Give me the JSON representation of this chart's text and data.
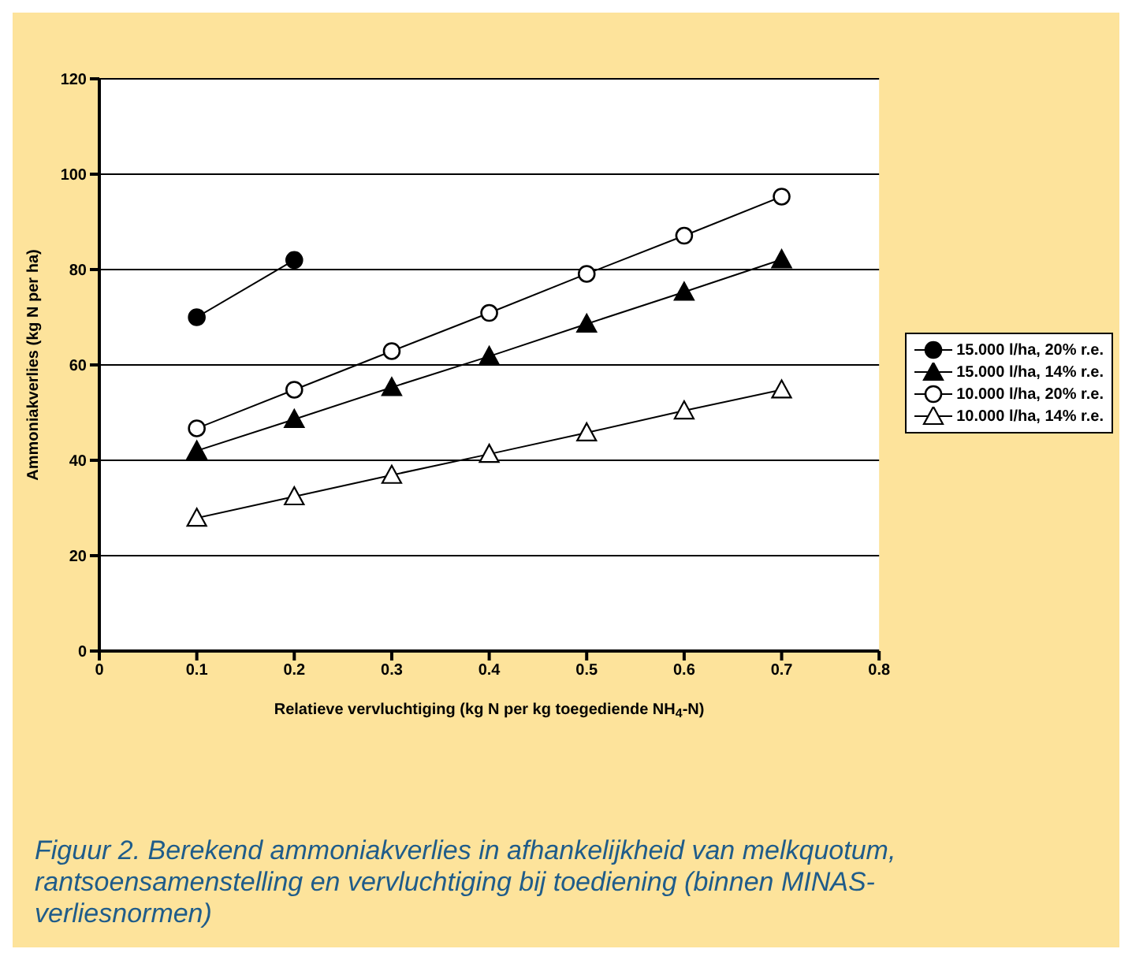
{
  "chart_data": {
    "type": "line",
    "xlabel": "Relatieve vervluchtiging (kg N per kg toegediende NH$_{4}$-N)",
    "ylabel": "Ammoniakverlies (kg N per ha)",
    "x": [
      0.1,
      0.2,
      0.3,
      0.4,
      0.5,
      0.6,
      0.7
    ],
    "series": [
      {
        "name": "15.000 l/ha, 20% r.e.",
        "color": "#000000",
        "marker": "circle",
        "values": [
          70,
          82,
          null,
          null,
          null,
          null,
          null
        ]
      },
      {
        "name": "15.000 l/ha, 14% r.e.",
        "color": "#000000",
        "marker": "triangle",
        "values": [
          42,
          48.6,
          55.3,
          61.8,
          68.6,
          75.3,
          82.1
        ]
      },
      {
        "name": "10.000 l/ha, 20% r.e.",
        "color": "#000000",
        "marker": "circle",
        "values": [
          46.7,
          54.8,
          62.9,
          70.9,
          79.1,
          87.1,
          95.3
        ]
      },
      {
        "name": "10.000 l/ha, 14% r.e.",
        "color": "#000000",
        "marker": "triangle",
        "values": [
          27.9,
          32.4,
          36.9,
          41.3,
          45.8,
          50.4,
          54.8
        ]
      }
    ],
    "xlim": [
      0,
      0.8
    ],
    "xticks": [
      0,
      0.1,
      0.2,
      0.3,
      0.4,
      0.5,
      0.6,
      0.7,
      0.8
    ],
    "ylim": [
      0,
      120
    ],
    "yticks": [
      0,
      20,
      40,
      60,
      80,
      100,
      120
    ],
    "grid": "y",
    "legend": "right",
    "line_style": "solid",
    "annotations": [
      "Figuur 2. Berekend ammoniakverlies in afhankelijkheid van melkquotum, rantsoensamenstelling en vervluchtiging bij toediening (binnen MINAS-verliesnormen)"
    ]
  }
}
